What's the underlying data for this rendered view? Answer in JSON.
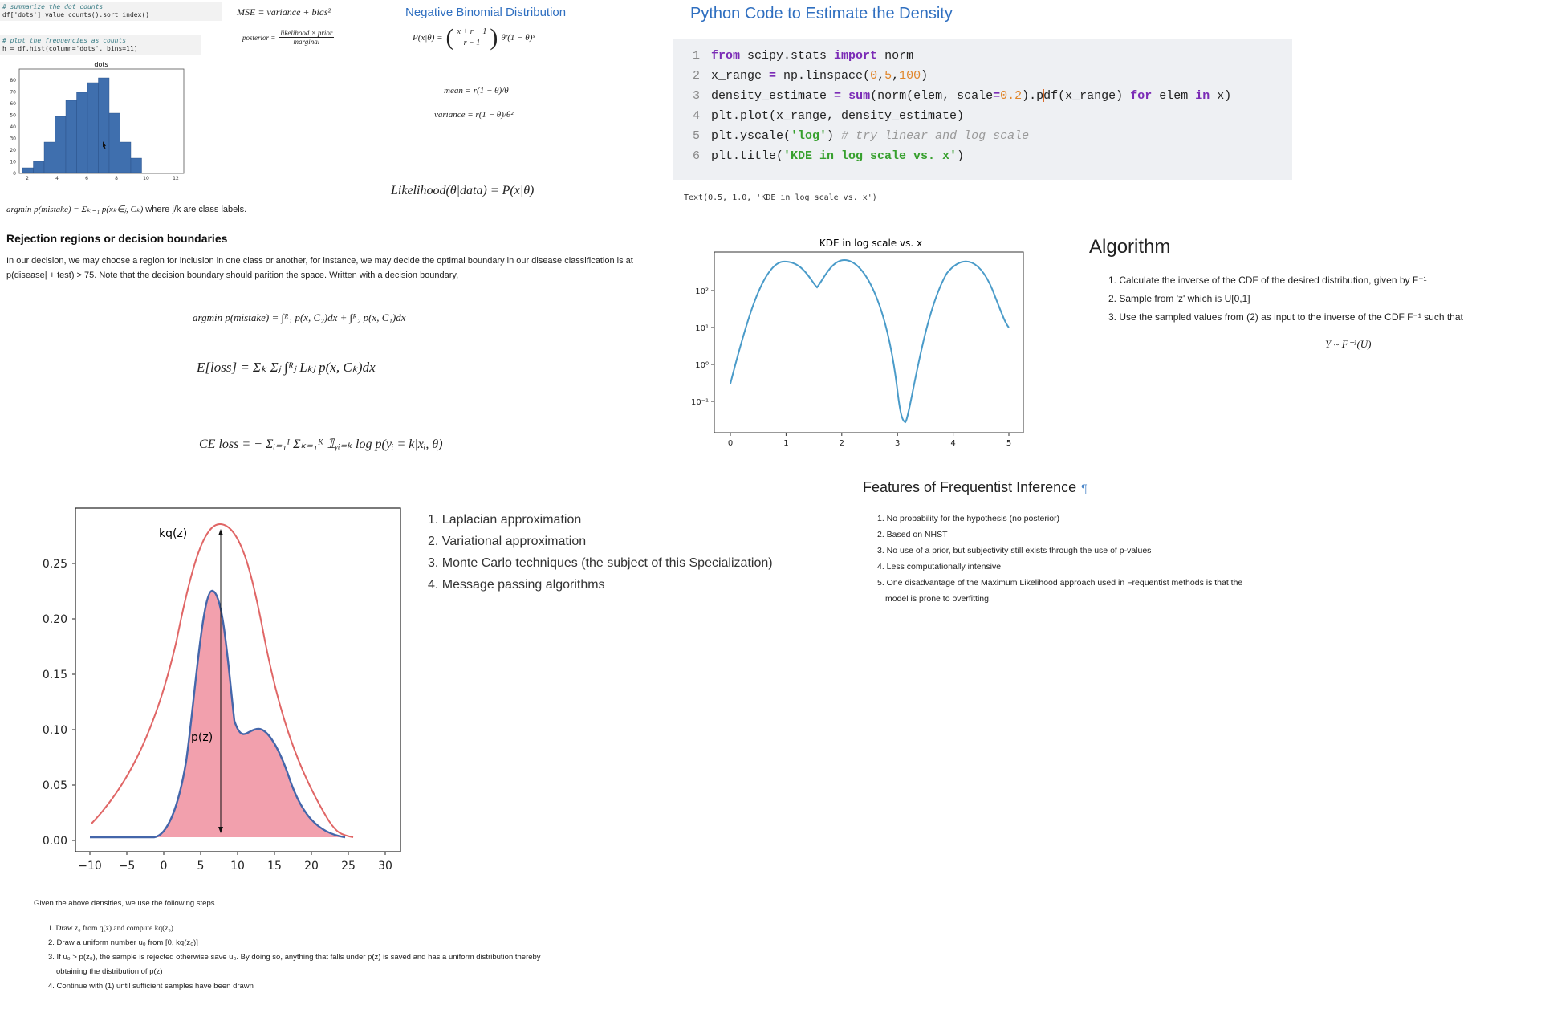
{
  "snippets": {
    "s1_comment": "# summarize the dot counts",
    "s1_code": "df['dots'].value_counts().sort_index()",
    "s2_comment": "# plot the frequencies as counts",
    "s2_code": "h = df.hist(column='dots', bins=11)"
  },
  "hist": {
    "title": "dots",
    "yticks": [
      "0",
      "10",
      "20",
      "30",
      "40",
      "50",
      "60",
      "70",
      "80"
    ],
    "xticks": [
      "2",
      "4",
      "6",
      "8",
      "10",
      "12"
    ]
  },
  "formulas": {
    "mse": "MSE = variance + bias²",
    "posterior_lhs": "posterior =",
    "posterior_num": "likelihood × prior",
    "posterior_den": "marginal",
    "negbin_title": "Negative Binomial Distribution",
    "negbin_lhs": "P(x|θ) =",
    "negbin_top": "x + r − 1",
    "negbin_bot": "r − 1",
    "negbin_rhs": "θʳ(1 − θ)ˣ",
    "mean": "mean = r(1 − θ)/θ",
    "variance": "variance = r(1 − θ)/θ²",
    "likelihood": "Likelihood(θ|data) = P(x|θ)",
    "argmin1": "argmin p(mistake) = Σₖᵢ₌₁ p(xₖ∈ⱼ, Cₖ)",
    "argmin1_suffix": "where j/k are class labels.",
    "argmin2": "argmin p(mistake) = ∫ᴿ₁ p(x, C₂)dx + ∫ᴿ₂ p(x, C₁)dx",
    "eloss": "E[loss] = Σₖ Σⱼ ∫ᴿⱼ Lₖⱼ p(x, Cₖ)dx",
    "celoss": "CE loss = − Σᵢ₌₁ᴵ Σₖ₌₁ᴷ 𝟙ᵧᵢ₌ₖ log p(yᵢ = k|xᵢ, θ)"
  },
  "rejection": {
    "heading": "Rejection regions or decision boundaries",
    "para": "In our decision, we may choose a region for inclusion in one class or another, for instance, we may decide the optimal boundary in our disease classification is at p(disease| + test) > 75. Note that the decision boundary should parition the space. Written with a decision boundary,"
  },
  "code": {
    "title": "Python Code to Estimate the Density",
    "output": "Text(0.5, 1.0, 'KDE in log scale vs. x')"
  },
  "kde": {
    "title": "KDE in log scale vs. x",
    "yticks": [
      "10²",
      "10¹",
      "10⁰",
      "10⁻¹"
    ],
    "xticks": [
      "0",
      "1",
      "2",
      "3",
      "4",
      "5"
    ]
  },
  "algorithm": {
    "heading": "Algorithm",
    "items": [
      "1. Calculate the inverse of the CDF of the desired distribution, given by F⁻¹",
      "2. Sample from 'z' which is U[0,1]",
      "3. Use the sampled values from (2) as input to the inverse of the CDF F⁻¹ such that"
    ],
    "formula": "Y ~ F⁻¹(U)"
  },
  "frequentist": {
    "heading": "Features of Frequentist Inference",
    "pilcrow": "¶",
    "items": [
      "1. No probability for the hypothesis (no posterior)",
      "2. Based on NHST",
      "3. No use of a prior, but subjectivity still exists through the use of p-values",
      "4. Less computationally intensive",
      "5. One disadvantage of the Maximum Likelihood approach used in Frequentist methods is that the",
      "model is prone to overfitting."
    ]
  },
  "approx": {
    "items": [
      "1. Laplacian approximation",
      "2. Variational approximation",
      "3. Monte Carlo techniques (the subject of this Specialization)",
      "4. Message passing algorithms"
    ]
  },
  "rejection_chart": {
    "label_kq": "kq(z)",
    "label_p": "p(z)",
    "yticks": [
      "0.25",
      "0.20",
      "0.15",
      "0.10",
      "0.05",
      "0.00"
    ],
    "xticks": [
      "−10",
      "−5",
      "0",
      "5",
      "10",
      "15",
      "20",
      "25",
      "30"
    ]
  },
  "steps": {
    "intro": "Given the above densities, we use the following steps",
    "items": [
      "1. Draw z₀ from q(z) and compute kq(z₀)",
      "2. Draw a uniform number u₀ from [0, kq(z₀)]",
      "3. If u₀ > p(z₀), the sample is rejected otherwise save u₀. By doing so, anything that falls under p(z) is saved and has a uniform distribution thereby",
      "obtaining the distribution of p(z)",
      "4. Continue with (1) until sufficient samples have been drawn"
    ]
  },
  "colors": {
    "heading_blue": "#2f6fc0",
    "hist_bar": "#3f6fae",
    "kde_line": "#4a9bc9",
    "kq_line": "#e06666",
    "pz_fill": "#f2a0ad",
    "pz_line": "#4466aa"
  }
}
